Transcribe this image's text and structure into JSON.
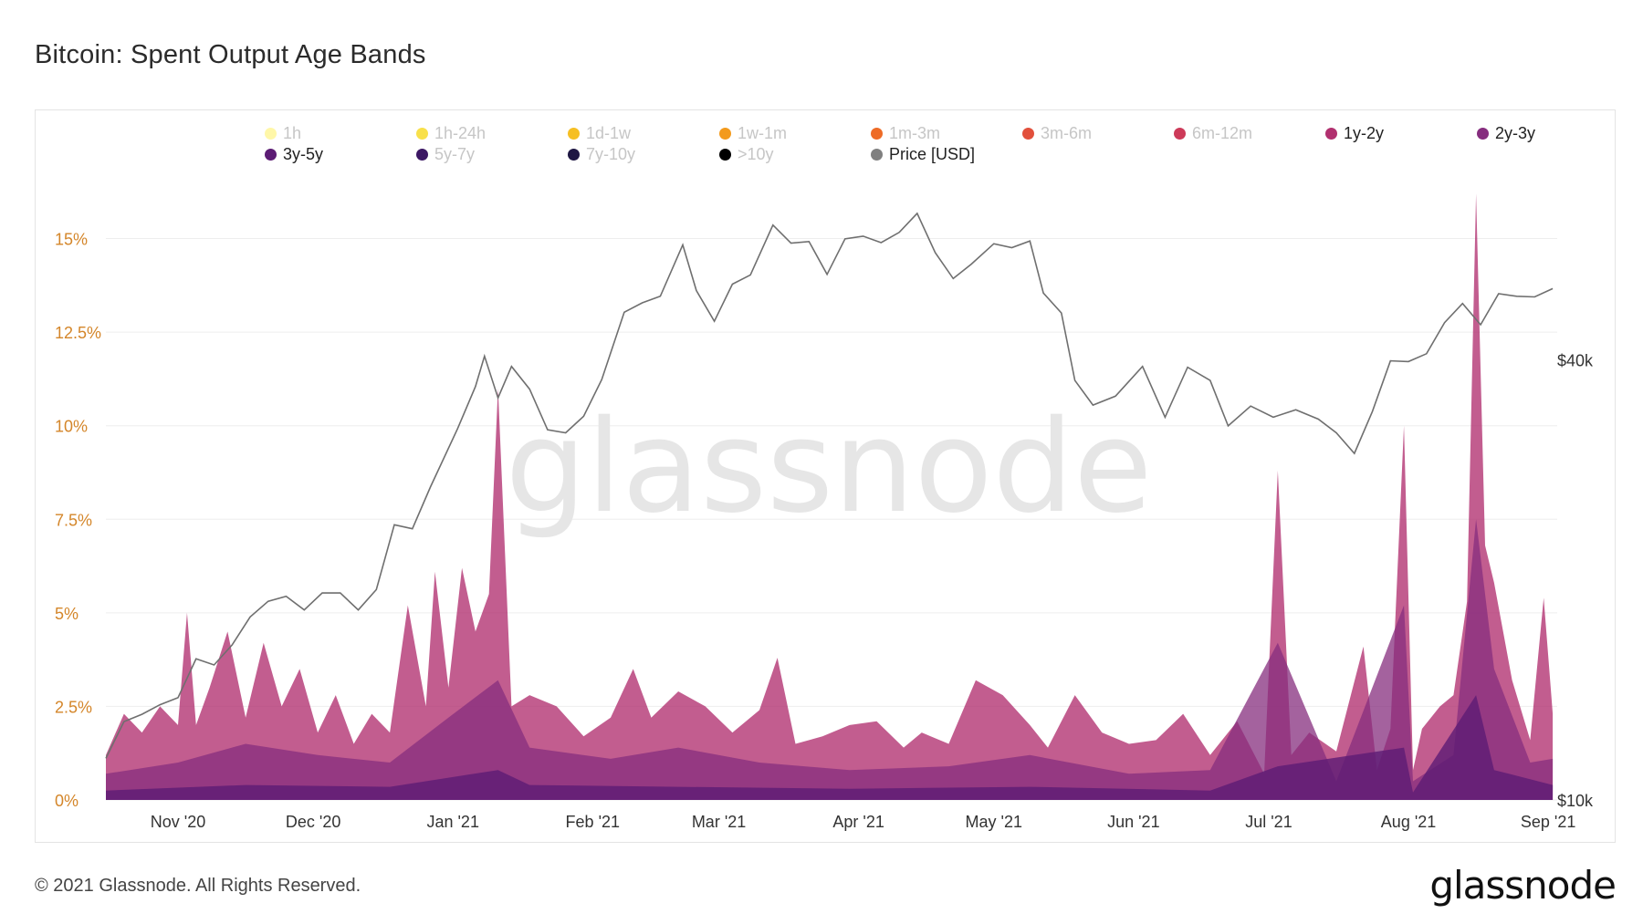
{
  "title": "Bitcoin: Spent Output Age Bands",
  "footer": "© 2021 Glassnode. All Rights Reserved.",
  "brand": "glassnode",
  "watermark": "glassnode",
  "colors": {
    "axis_left": "#d4862a",
    "price_line": "#6f6f6f",
    "grid": "#eeeeee"
  },
  "legend": [
    {
      "label": "1h",
      "color": "#fff7a8",
      "active": false
    },
    {
      "label": "1h-24h",
      "color": "#f8e04a",
      "active": false
    },
    {
      "label": "1d-1w",
      "color": "#f6bf23",
      "active": false
    },
    {
      "label": "1w-1m",
      "color": "#f39a1c",
      "active": false
    },
    {
      "label": "1m-3m",
      "color": "#ee6b26",
      "active": false
    },
    {
      "label": "3m-6m",
      "color": "#e2503c",
      "active": false
    },
    {
      "label": "6m-12m",
      "color": "#cd3a59",
      "active": false
    },
    {
      "label": "1y-2y",
      "color": "#b1306f",
      "active": true
    },
    {
      "label": "2y-3y",
      "color": "#862d7e",
      "active": true
    },
    {
      "label": "3y-5y",
      "color": "#5c1c74",
      "active": true
    },
    {
      "label": "5y-7y",
      "color": "#3c1864",
      "active": false
    },
    {
      "label": "7y-10y",
      "color": "#1e1743",
      "active": false
    },
    {
      "label": ">10y",
      "color": "#000000",
      "active": false
    },
    {
      "label": "Price [USD]",
      "color": "#808080",
      "active": true
    }
  ],
  "chart_data": {
    "type": "area",
    "title": "Bitcoin: Spent Output Age Bands",
    "x_ticks": [
      "Nov '20",
      "Dec '20",
      "Jan '21",
      "Feb '21",
      "Mar '21",
      "Apr '21",
      "May '21",
      "Jun '21",
      "Jul '21",
      "Aug '21",
      "Sep '21"
    ],
    "y_left_ticks": [
      "0%",
      "2.5%",
      "5%",
      "7.5%",
      "10%",
      "12.5%",
      "15%"
    ],
    "y_left_range": [
      0,
      16.5
    ],
    "y_right_ticks": [
      "$10k",
      "$40k"
    ],
    "y_right_scale": "log",
    "y_right_range": [
      10000,
      70000
    ],
    "series": [
      {
        "name": "1y-2y",
        "color": "#b1306f",
        "x": [
          "2020-10-16",
          "2020-10-20",
          "2020-10-24",
          "2020-10-28",
          "2020-11-01",
          "2020-11-03",
          "2020-11-05",
          "2020-11-08",
          "2020-11-12",
          "2020-11-16",
          "2020-11-20",
          "2020-11-24",
          "2020-11-28",
          "2020-12-02",
          "2020-12-06",
          "2020-12-10",
          "2020-12-14",
          "2020-12-18",
          "2020-12-22",
          "2020-12-26",
          "2020-12-28",
          "2020-12-31",
          "2021-01-03",
          "2021-01-06",
          "2021-01-09",
          "2021-01-11",
          "2021-01-14",
          "2021-01-18",
          "2021-01-24",
          "2021-01-30",
          "2021-02-05",
          "2021-02-10",
          "2021-02-14",
          "2021-02-20",
          "2021-02-26",
          "2021-03-04",
          "2021-03-10",
          "2021-03-14",
          "2021-03-18",
          "2021-03-24",
          "2021-03-30",
          "2021-04-05",
          "2021-04-11",
          "2021-04-15",
          "2021-04-21",
          "2021-04-27",
          "2021-05-03",
          "2021-05-09",
          "2021-05-13",
          "2021-05-19",
          "2021-05-25",
          "2021-05-31",
          "2021-06-06",
          "2021-06-12",
          "2021-06-18",
          "2021-06-24",
          "2021-06-30",
          "2021-07-03",
          "2021-07-06",
          "2021-07-10",
          "2021-07-16",
          "2021-07-22",
          "2021-07-25",
          "2021-07-28",
          "2021-07-31",
          "2021-08-02",
          "2021-08-04",
          "2021-08-08",
          "2021-08-11",
          "2021-08-14",
          "2021-08-16",
          "2021-08-18",
          "2021-08-20",
          "2021-08-24",
          "2021-08-28",
          "2021-08-31",
          "2021-09-02"
        ],
        "values": [
          1.2,
          2.3,
          1.8,
          2.5,
          2.0,
          5.0,
          2.0,
          3.0,
          4.5,
          2.2,
          4.2,
          2.5,
          3.5,
          1.8,
          2.8,
          1.5,
          2.3,
          1.8,
          5.2,
          2.5,
          6.1,
          3.0,
          6.2,
          4.5,
          5.5,
          11.0,
          2.5,
          2.8,
          2.5,
          1.7,
          2.2,
          3.5,
          2.2,
          2.9,
          2.5,
          1.8,
          2.4,
          3.8,
          1.5,
          1.7,
          2.0,
          2.1,
          1.4,
          1.8,
          1.5,
          3.2,
          2.8,
          2.0,
          1.4,
          2.8,
          1.8,
          1.5,
          1.6,
          2.3,
          1.2,
          2.1,
          0.7,
          8.8,
          1.2,
          1.8,
          1.3,
          4.1,
          0.8,
          1.9,
          10.0,
          0.8,
          1.9,
          2.5,
          2.8,
          5.3,
          16.2,
          6.8,
          5.8,
          3.2,
          1.6,
          5.4,
          2.3
        ]
      },
      {
        "name": "2y-3y",
        "color": "#862d7e",
        "x": [
          "2020-10-16",
          "2020-11-01",
          "2020-11-16",
          "2020-12-02",
          "2020-12-18",
          "2020-12-31",
          "2021-01-11",
          "2021-01-18",
          "2021-02-05",
          "2021-02-20",
          "2021-03-10",
          "2021-03-30",
          "2021-04-21",
          "2021-05-09",
          "2021-05-31",
          "2021-06-18",
          "2021-07-03",
          "2021-07-16",
          "2021-07-31",
          "2021-08-02",
          "2021-08-11",
          "2021-08-16",
          "2021-08-20",
          "2021-08-28",
          "2021-09-02"
        ],
        "values": [
          0.7,
          1.0,
          1.5,
          1.2,
          1.0,
          2.2,
          3.2,
          1.4,
          1.1,
          1.4,
          1.0,
          0.8,
          0.9,
          1.2,
          0.7,
          0.8,
          4.2,
          0.5,
          5.2,
          0.5,
          1.2,
          7.5,
          3.5,
          1.0,
          1.1
        ]
      },
      {
        "name": "3y-5y",
        "color": "#5c1c74",
        "x": [
          "2020-10-16",
          "2020-11-16",
          "2020-12-18",
          "2021-01-11",
          "2021-01-18",
          "2021-02-20",
          "2021-03-30",
          "2021-05-09",
          "2021-06-18",
          "2021-07-03",
          "2021-07-31",
          "2021-08-02",
          "2021-08-16",
          "2021-08-20",
          "2021-09-02"
        ],
        "values": [
          0.25,
          0.4,
          0.35,
          0.8,
          0.4,
          0.35,
          0.3,
          0.35,
          0.25,
          0.9,
          1.4,
          0.2,
          2.8,
          0.8,
          0.4
        ]
      },
      {
        "name": "Price [USD]",
        "color": "#808080",
        "axis": "right",
        "x": [
          "2020-10-16",
          "2020-10-20",
          "2020-10-24",
          "2020-10-28",
          "2020-11-01",
          "2020-11-05",
          "2020-11-09",
          "2020-11-13",
          "2020-11-17",
          "2020-11-21",
          "2020-11-25",
          "2020-11-29",
          "2020-12-03",
          "2020-12-07",
          "2020-12-11",
          "2020-12-15",
          "2020-12-19",
          "2020-12-23",
          "2020-12-27",
          "2021-01-02",
          "2021-01-06",
          "2021-01-08",
          "2021-01-11",
          "2021-01-14",
          "2021-01-18",
          "2021-01-22",
          "2021-01-26",
          "2021-01-30",
          "2021-02-03",
          "2021-02-08",
          "2021-02-12",
          "2021-02-16",
          "2021-02-21",
          "2021-02-24",
          "2021-02-28",
          "2021-03-04",
          "2021-03-08",
          "2021-03-13",
          "2021-03-17",
          "2021-03-21",
          "2021-03-25",
          "2021-03-29",
          "2021-04-02",
          "2021-04-06",
          "2021-04-10",
          "2021-04-14",
          "2021-04-18",
          "2021-04-22",
          "2021-04-26",
          "2021-05-01",
          "2021-05-05",
          "2021-05-09",
          "2021-05-12",
          "2021-05-16",
          "2021-05-19",
          "2021-05-23",
          "2021-05-28",
          "2021-06-03",
          "2021-06-08",
          "2021-06-13",
          "2021-06-18",
          "2021-06-22",
          "2021-06-27",
          "2021-07-02",
          "2021-07-07",
          "2021-07-12",
          "2021-07-16",
          "2021-07-20",
          "2021-07-24",
          "2021-07-28",
          "2021-08-01",
          "2021-08-05",
          "2021-08-09",
          "2021-08-13",
          "2021-08-17",
          "2021-08-21",
          "2021-08-25",
          "2021-08-29",
          "2021-09-02"
        ],
        "values": [
          11400,
          12800,
          13100,
          13500,
          13800,
          15600,
          15300,
          16300,
          17800,
          18700,
          19000,
          18200,
          19200,
          19200,
          18200,
          19400,
          23800,
          23500,
          26800,
          32200,
          36800,
          40500,
          35500,
          39200,
          36500,
          32100,
          31800,
          33500,
          37600,
          46500,
          47900,
          48900,
          57500,
          49800,
          45200,
          50800,
          52300,
          61200,
          57800,
          58100,
          52400,
          58600,
          59100,
          57900,
          59800,
          63500,
          56100,
          51700,
          54100,
          57700,
          57000,
          58200,
          49400,
          46400,
          37500,
          34700,
          35700,
          39200,
          33400,
          39100,
          37500,
          32500,
          34600,
          33400,
          34200,
          33200,
          31800,
          29800,
          34000,
          39900,
          39800,
          40800,
          45000,
          47800,
          44700,
          49300,
          48900,
          48800,
          50100
        ]
      }
    ]
  }
}
